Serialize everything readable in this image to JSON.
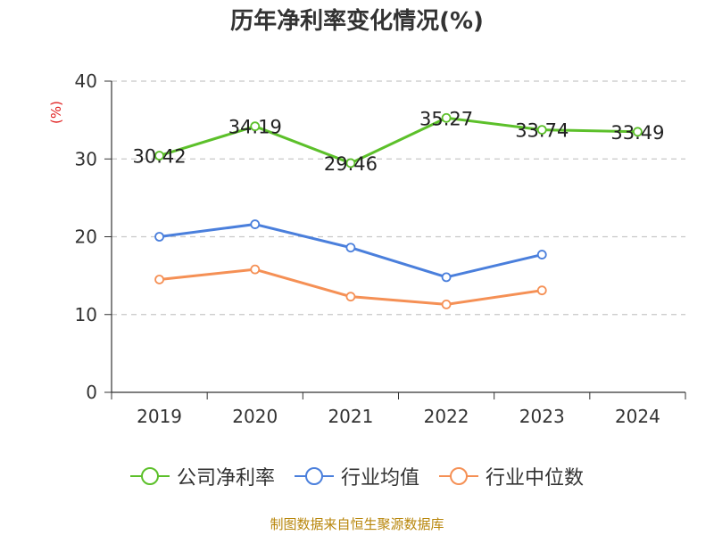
{
  "chart_data": {
    "type": "line",
    "title": "历年净利率变化情况(%)",
    "ylabel": "(%)",
    "xlabel": "",
    "ylim": [
      0,
      40
    ],
    "yticks": [
      0,
      10,
      20,
      30,
      40
    ],
    "categories": [
      "2019",
      "2020",
      "2021",
      "2022",
      "2023",
      "2024"
    ],
    "series": [
      {
        "name": "公司净利率",
        "color": "#5cc02a",
        "values": [
          30.42,
          34.19,
          29.46,
          35.27,
          33.74,
          33.49
        ],
        "show_labels": true,
        "labels": [
          "30.42",
          "34.19",
          "29.46",
          "35.27",
          "33.74",
          "33.49"
        ]
      },
      {
        "name": "行业均值",
        "color": "#4a7fdc",
        "values": [
          20.0,
          21.6,
          18.6,
          14.8,
          17.7,
          null
        ],
        "show_labels": false
      },
      {
        "name": "行业中位数",
        "color": "#f59055",
        "values": [
          14.5,
          15.8,
          12.3,
          11.3,
          13.1,
          null
        ],
        "show_labels": false
      }
    ],
    "grid": true,
    "legend": "bottom"
  },
  "source": "制图数据来自恒生聚源数据库"
}
